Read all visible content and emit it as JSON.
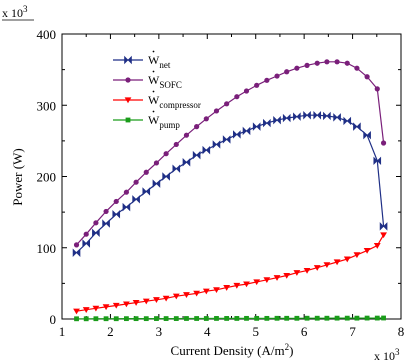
{
  "chart_data": {
    "type": "line",
    "xlabel": "Current Density (A/m",
    "xlabel_sup": "2",
    "xlabel_tail": ")",
    "ylabel": "Power (W)",
    "x_multiplier": {
      "base": "x 10",
      "exp": "3"
    },
    "y_multiplier": {
      "base": "x 10",
      "exp": "3"
    },
    "xlim": [
      1,
      8
    ],
    "ylim": [
      0,
      400
    ],
    "x_ticks": [
      1,
      2,
      3,
      4,
      5,
      6,
      7,
      8
    ],
    "y_ticks": [
      0,
      100,
      200,
      300,
      400
    ],
    "grid": false,
    "legend_position": "top-left",
    "series": [
      {
        "name": "net",
        "color": "#1f2f86",
        "marker": "bowtie",
        "x": [
          1.3,
          1.5,
          1.7,
          1.91,
          2.12,
          2.33,
          2.53,
          2.74,
          2.95,
          3.15,
          3.36,
          3.57,
          3.78,
          3.98,
          4.19,
          4.4,
          4.61,
          4.81,
          5.02,
          5.23,
          5.44,
          5.64,
          5.85,
          6.06,
          6.27,
          6.47,
          6.68,
          6.89,
          7.09,
          7.3,
          7.51,
          7.64
        ],
        "y": [
          93,
          106,
          121,
          134,
          147,
          157,
          168,
          179,
          190,
          200,
          211,
          220,
          230,
          237,
          245,
          252,
          259,
          264,
          270,
          275,
          279,
          282,
          284,
          286,
          286,
          285,
          283,
          278,
          270,
          258,
          222,
          130
        ]
      },
      {
        "name": "SOFC",
        "color": "#7a1f7a",
        "marker": "circle",
        "x": [
          1.3,
          1.5,
          1.7,
          1.91,
          2.12,
          2.33,
          2.53,
          2.74,
          2.95,
          3.15,
          3.36,
          3.57,
          3.78,
          3.98,
          4.19,
          4.4,
          4.61,
          4.81,
          5.02,
          5.23,
          5.44,
          5.64,
          5.85,
          6.06,
          6.27,
          6.47,
          6.68,
          6.89,
          7.09,
          7.3,
          7.51,
          7.64
        ],
        "y": [
          104,
          119,
          135,
          151,
          165,
          178,
          192,
          206,
          219,
          232,
          245,
          258,
          270,
          281,
          292,
          302,
          312,
          320,
          328,
          335,
          341,
          347,
          352,
          356,
          359,
          361,
          361,
          359,
          352,
          340,
          323,
          247
        ]
      },
      {
        "name": "compressor",
        "color": "#ff0000",
        "marker": "triangle-down",
        "x": [
          1.3,
          1.5,
          1.7,
          1.91,
          2.12,
          2.33,
          2.53,
          2.74,
          2.95,
          3.15,
          3.36,
          3.57,
          3.78,
          3.98,
          4.19,
          4.4,
          4.61,
          4.81,
          5.02,
          5.23,
          5.44,
          5.64,
          5.85,
          6.06,
          6.27,
          6.47,
          6.68,
          6.89,
          7.09,
          7.3,
          7.51,
          7.64
        ],
        "y": [
          11,
          13,
          15,
          17,
          19,
          21,
          23,
          25,
          27,
          29,
          32,
          34,
          36,
          39,
          41,
          44,
          47,
          49,
          52,
          55,
          58,
          61,
          65,
          68,
          72,
          76,
          80,
          84,
          90,
          96,
          103,
          118
        ]
      },
      {
        "name": "pump",
        "color": "#1a9c1a",
        "marker": "square",
        "x": [
          1.3,
          1.5,
          1.7,
          1.91,
          2.12,
          2.33,
          2.53,
          2.74,
          2.95,
          3.15,
          3.36,
          3.57,
          3.78,
          3.98,
          4.19,
          4.4,
          4.61,
          4.81,
          5.02,
          5.23,
          5.44,
          5.64,
          5.85,
          6.06,
          6.27,
          6.47,
          6.68,
          6.89,
          7.09,
          7.3,
          7.51,
          7.64
        ],
        "y": [
          0.3,
          0.3,
          0.4,
          0.4,
          0.4,
          0.5,
          0.5,
          0.5,
          0.6,
          0.6,
          0.6,
          0.7,
          0.7,
          0.7,
          0.8,
          0.8,
          0.8,
          0.9,
          0.9,
          0.9,
          1.0,
          1.0,
          1.0,
          1.1,
          1.1,
          1.1,
          1.2,
          1.2,
          1.2,
          1.3,
          1.3,
          1.4
        ]
      }
    ],
    "legend_symbol": "W"
  }
}
